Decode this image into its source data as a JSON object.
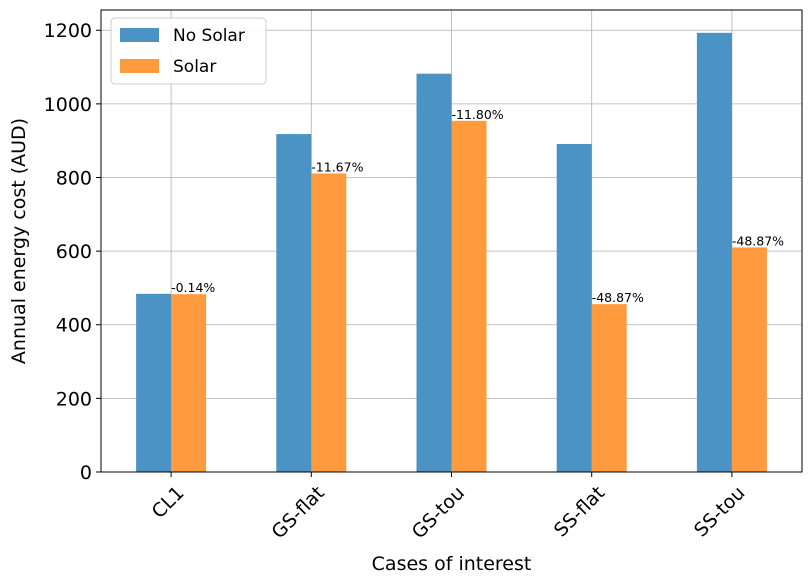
{
  "chart_data": {
    "type": "bar",
    "categories": [
      "CL1",
      "GS-flat",
      "GS-tou",
      "SS-flat",
      "SS-tou"
    ],
    "series": [
      {
        "name": "No Solar",
        "color": "#4a93c4",
        "values": [
          484,
          918,
          1082,
          891,
          1193
        ]
      },
      {
        "name": "Solar",
        "color": "#ff9a3f",
        "values": [
          483,
          811,
          954,
          456,
          610
        ]
      }
    ],
    "annotations": [
      "-0.14%",
      "-11.67%",
      "-11.80%",
      "-48.87%",
      "-48.87%"
    ],
    "xlabel": "Cases of interest",
    "ylabel": "Annual energy cost (AUD)",
    "yticks": [
      0,
      200,
      400,
      600,
      800,
      1000,
      1200
    ],
    "ylim": [
      0,
      1255
    ],
    "grid": true,
    "legend_position": "top-left"
  }
}
